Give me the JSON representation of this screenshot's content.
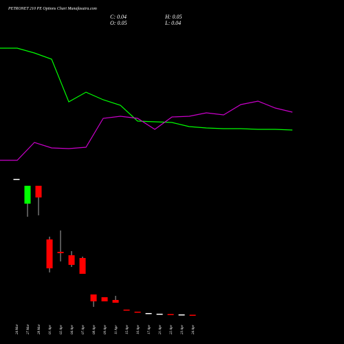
{
  "chart_data": [
    {
      "type": "candlestick",
      "title": "PETRONET 210 PE Options Chart Munafasutra.com",
      "annotations": [
        "C: 0.04",
        "H: 0.05",
        "O: 0.05",
        "L: 0.04"
      ],
      "categories": [
        "24 Mar",
        "27 Mar",
        "28 Mar",
        "01 Apr",
        "02 Apr",
        "04 Apr",
        "07 Apr",
        "08 Apr",
        "09 Apr",
        "11 Apr",
        "15 Apr",
        "16 Apr",
        "17 Apr",
        "21 Apr",
        "22 Apr",
        "23 Apr",
        "24 Apr"
      ],
      "open": [
        4.0,
        3.28,
        3.8,
        2.24,
        1.88,
        1.78,
        1.7,
        0.64,
        0.56,
        0.48,
        0.2,
        0.14,
        0.1,
        0.08,
        0.07,
        0.06,
        0.05
      ],
      "high": [
        4.0,
        3.8,
        3.8,
        2.32,
        2.5,
        1.9,
        1.74,
        0.64,
        0.56,
        0.6,
        0.2,
        0.14,
        0.1,
        0.08,
        0.07,
        0.06,
        0.05
      ],
      "low": [
        4.0,
        2.9,
        2.94,
        1.28,
        1.6,
        1.44,
        1.24,
        0.28,
        0.44,
        0.4,
        0.18,
        0.12,
        0.1,
        0.08,
        0.06,
        0.06,
        0.04
      ],
      "close": [
        4.0,
        3.8,
        3.46,
        1.4,
        1.84,
        1.5,
        1.24,
        0.44,
        0.44,
        0.4,
        0.18,
        0.12,
        0.1,
        0.08,
        0.06,
        0.06,
        0.04
      ],
      "up_color": "#00ff00",
      "down_color": "#ff0000",
      "flat_color": "#ffffff",
      "ylim": [
        0,
        9.2
      ]
    },
    {
      "type": "line",
      "categories": [
        null,
        null,
        null,
        null,
        null,
        null,
        null,
        null,
        null,
        null,
        null,
        null,
        null,
        null,
        null,
        null,
        null,
        null
      ],
      "series": [
        {
          "color": "#00ff00",
          "values": [
            7.8,
            7.8,
            7.66,
            7.48,
            6.24,
            6.52,
            6.3,
            6.14,
            5.68,
            5.66,
            5.64,
            5.52,
            5.48,
            5.46,
            5.46,
            5.44,
            5.44,
            5.42
          ]
        },
        {
          "color": "#cc00cc",
          "values": [
            4.54,
            4.54,
            5.06,
            4.9,
            4.88,
            4.92,
            5.76,
            5.82,
            5.76,
            5.44,
            5.8,
            5.82,
            5.92,
            5.86,
            6.16,
            6.26,
            6.06,
            5.94
          ]
        }
      ],
      "ylim": [
        0,
        9.2
      ]
    }
  ]
}
